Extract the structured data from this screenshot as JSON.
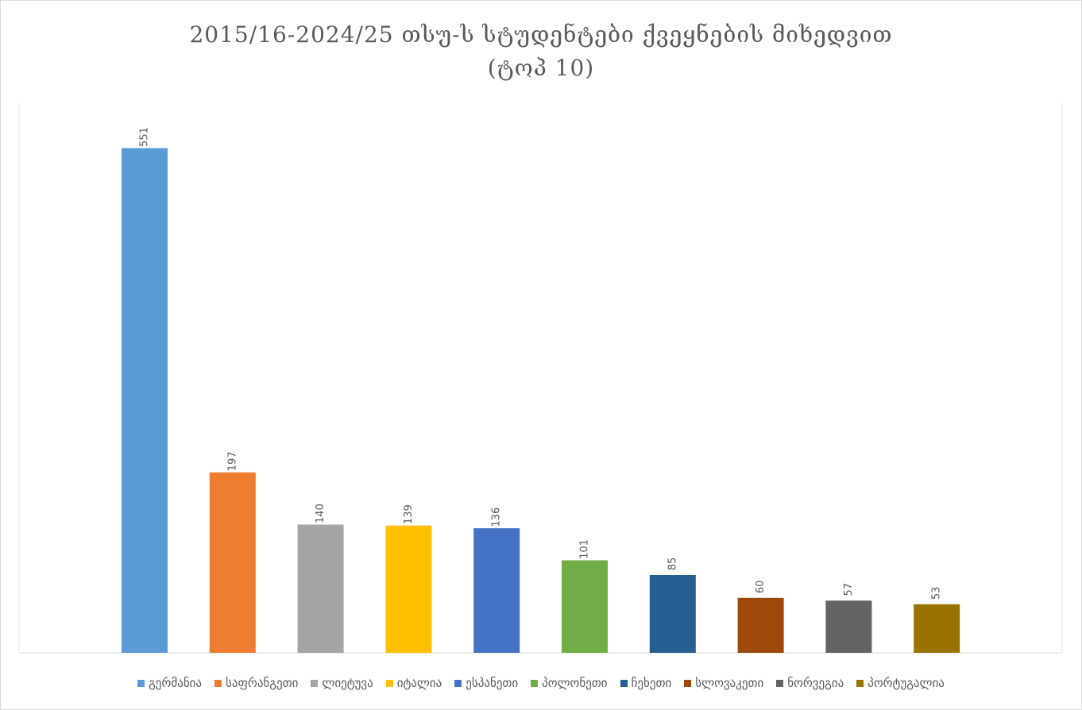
{
  "chart_data": {
    "type": "bar",
    "title": [
      "2015/16-2024/25 თსუ-ს სტუდენტები ქვეყნების მიხედვით",
      "(ტოპ 10)"
    ],
    "categories": [
      null
    ],
    "ylim": [
      0,
      600
    ],
    "series": [
      {
        "name": "გერმანია",
        "color": "#5b9bd5",
        "values": [
          551
        ]
      },
      {
        "name": "საფრანგეთი",
        "color": "#ed7d31",
        "values": [
          197
        ]
      },
      {
        "name": "ლიეტუვა",
        "color": "#a5a5a5",
        "values": [
          140
        ]
      },
      {
        "name": "იტალია",
        "color": "#ffc000",
        "values": [
          139
        ]
      },
      {
        "name": "ესპანეთი",
        "color": "#4472c4",
        "values": [
          136
        ]
      },
      {
        "name": "პოლონეთი",
        "color": "#70ad47",
        "values": [
          101
        ]
      },
      {
        "name": "ჩეხეთი",
        "color": "#255e91",
        "values": [
          85
        ]
      },
      {
        "name": "სლოვაკეთი",
        "color": "#9e480e",
        "values": [
          60
        ]
      },
      {
        "name": "ნორვეგია",
        "color": "#636363",
        "values": [
          57
        ]
      },
      {
        "name": "პორტუგალია",
        "color": "#997300",
        "values": [
          53
        ]
      }
    ]
  }
}
